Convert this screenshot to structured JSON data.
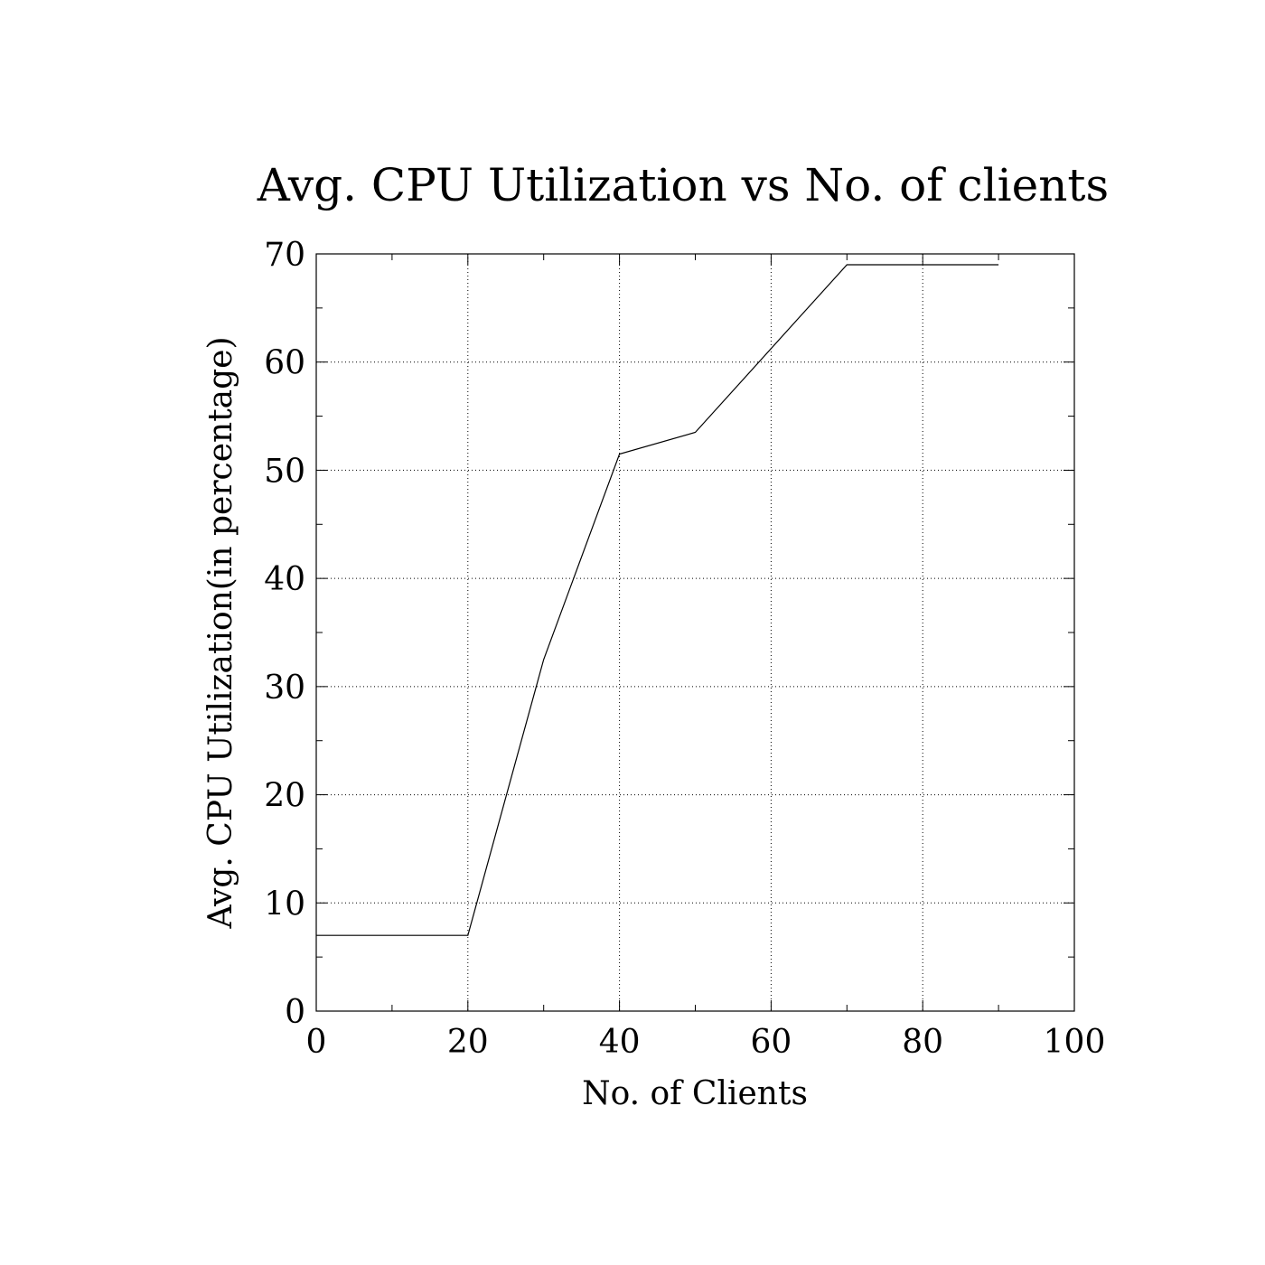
{
  "chart_data": {
    "type": "line",
    "title": "Avg. CPU Utilization vs No. of clients",
    "xlabel": "No. of Clients",
    "ylabel": "Avg. CPU Utilization(in percentage)",
    "xlim": [
      0,
      100
    ],
    "ylim": [
      0,
      70
    ],
    "xticks": [
      0,
      20,
      40,
      60,
      80,
      100
    ],
    "yticks": [
      0,
      10,
      20,
      30,
      40,
      50,
      60,
      70
    ],
    "grid": true,
    "series": [
      {
        "x": [
          0,
          20,
          30,
          40,
          50,
          70,
          90
        ],
        "values": [
          7,
          7,
          32.5,
          51.5,
          53.5,
          69,
          69
        ]
      }
    ],
    "colors": {
      "line": "#000000",
      "axes": "#000000",
      "grid": "#000000"
    }
  }
}
